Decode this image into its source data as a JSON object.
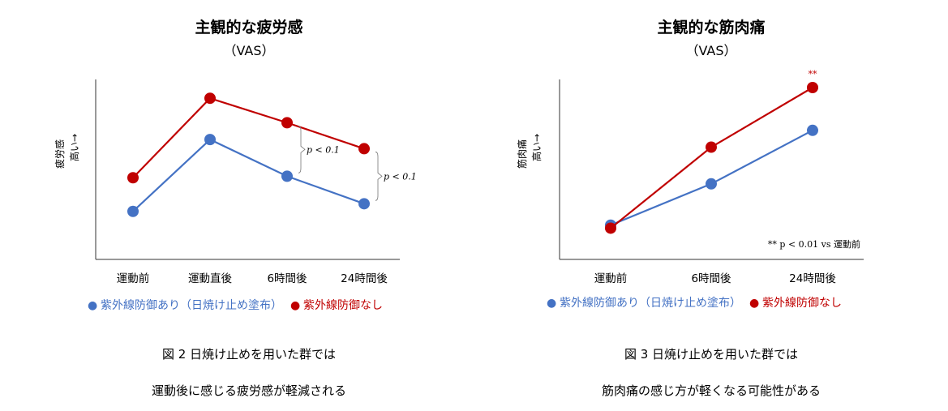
{
  "colors": {
    "blue": "#4472C4",
    "red": "#C00000",
    "axis": "#333333"
  },
  "chart_data": [
    {
      "type": "line",
      "title": "主観的な疲労感",
      "subtitle": "（VAS）",
      "ylabel": "疲労感",
      "ylabel_arrow": "高い→",
      "categories": [
        "運動前",
        "運動直後",
        "6時間後",
        "24時間後"
      ],
      "ylim": [
        0,
        10
      ],
      "series": [
        {
          "name": "紫外線防御あり（日焼け止め塗布）",
          "color": "#4472C4",
          "values": [
            2.4,
            7.1,
            4.7,
            2.9
          ]
        },
        {
          "name": "紫外線防御なし",
          "color": "#C00000",
          "values": [
            4.6,
            9.8,
            8.2,
            6.5
          ]
        }
      ],
      "annotations": [
        {
          "text": "p < 0.1",
          "category": "6時間後",
          "y_range": [
            4.7,
            8.2
          ]
        },
        {
          "text": "p < 0.1",
          "category": "24時間後",
          "y_range": [
            2.9,
            6.5
          ]
        }
      ],
      "legend": [
        {
          "marker": "●",
          "label": "紫外線防御あり（日焼け止め塗布）",
          "color": "#4472C4"
        },
        {
          "marker": "●",
          "label": "紫外線防御なし",
          "color": "#C00000"
        }
      ],
      "caption": [
        "図 2  日焼け止めを用いた群では",
        "運動後に感じる疲労感が軽減される"
      ]
    },
    {
      "type": "line",
      "title": "主観的な筋肉痛",
      "subtitle": "（VAS）",
      "ylabel": "筋肉痛",
      "ylabel_arrow": "高い→",
      "categories": [
        "運動前",
        "6時間後",
        "24時間後"
      ],
      "ylim": [
        0,
        10
      ],
      "series": [
        {
          "name": "紫外線防御あり（日焼け止め塗布）",
          "color": "#4472C4",
          "values": [
            1.5,
            4.2,
            7.7
          ]
        },
        {
          "name": "紫外線防御なし",
          "color": "#C00000",
          "values": [
            1.3,
            6.6,
            10.5
          ]
        }
      ],
      "annotations": [
        {
          "text": "**",
          "category": "24時間後",
          "y": 10.5
        },
        {
          "text": "** p < 0.01 vs 運動前",
          "position": "bottom-right"
        }
      ],
      "legend": [
        {
          "marker": "●",
          "label": "紫外線防御あり（日焼け止め塗布）",
          "color": "#4472C4"
        },
        {
          "marker": "●",
          "label": "紫外線防御なし",
          "color": "#C00000"
        }
      ],
      "caption": [
        "図 3  日焼け止めを用いた群では",
        "筋肉痛の感じ方が軽くなる可能性がある"
      ]
    }
  ]
}
